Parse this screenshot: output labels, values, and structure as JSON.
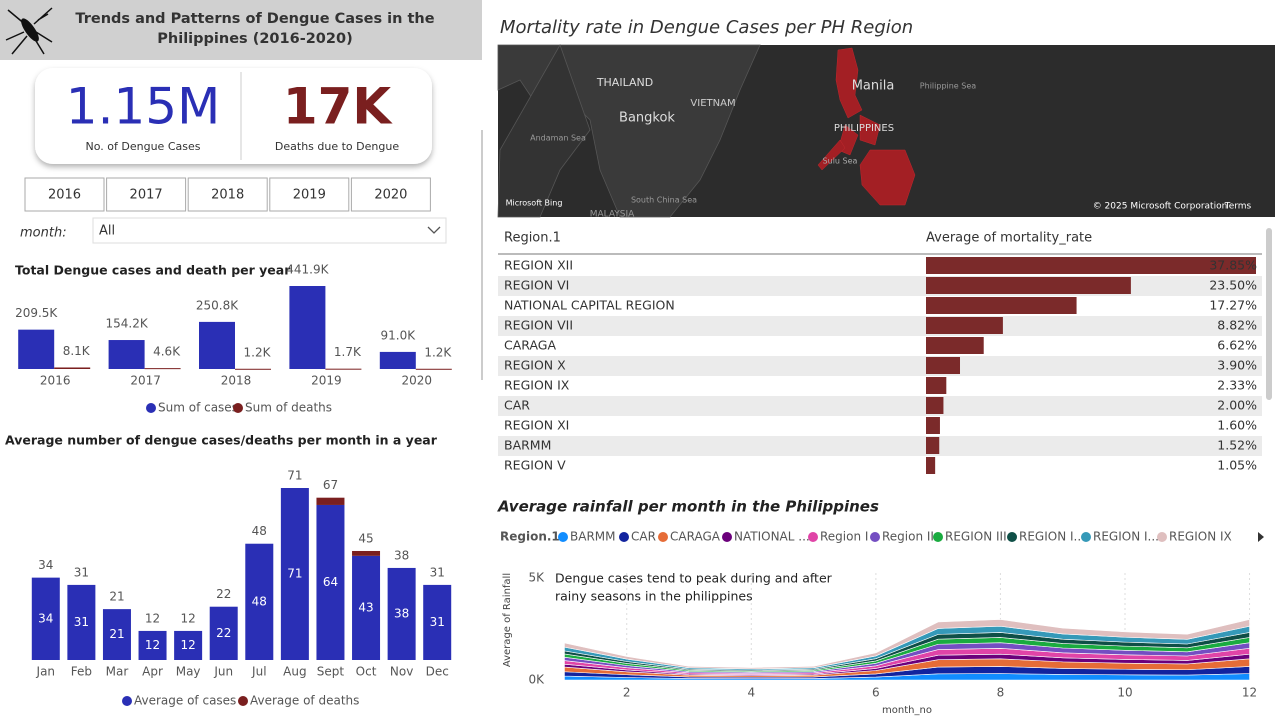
{
  "header": {
    "title": [
      "Trends and Patterns of Dengue Cases in the",
      "Philippines (2016-2020)"
    ]
  },
  "kpis": [
    {
      "value": "1.15M",
      "label": "No. of Dengue Cases"
    },
    {
      "value": "17K",
      "label": "Deaths due to Dengue"
    }
  ],
  "slicer": {
    "years": [
      "2016",
      "2017",
      "2018",
      "2019",
      "2020"
    ],
    "month_label": "month:",
    "month_value": "All"
  },
  "map": {
    "title": "Mortality rate in Dengue Cases per PH Region",
    "labels": [
      "THAILAND",
      "VIETNAM",
      "Bangkok",
      "Andaman Sea",
      "South China Sea",
      "MALAYSIA",
      "Manila",
      "PHILIPPINES",
      "Philippine Sea",
      "Sulu Sea",
      "Microsoft Bing",
      "© 2025 Microsoft Corporation",
      "Terms"
    ]
  },
  "chart_data": [
    {
      "type": "bar",
      "title": "Total Dengue cases and death per year",
      "categories": [
        "2016",
        "2017",
        "2018",
        "2019",
        "2020"
      ],
      "series": [
        {
          "name": "Sum of cases",
          "color": "#2a2fb5",
          "values": [
            209500,
            154200,
            250800,
            441900,
            91000
          ],
          "value_labels": [
            "209.5K",
            "154.2K",
            "250.8K",
            "441.9K",
            "91.0K"
          ]
        },
        {
          "name": "Sum of deaths",
          "color": "#7a1f1f",
          "values": [
            8100,
            4600,
            1200,
            1700,
            1200
          ],
          "value_labels": [
            "8.1K",
            "4.6K",
            "1.2K",
            "1.7K",
            "1.2K"
          ]
        }
      ],
      "stacked": false
    },
    {
      "type": "bar",
      "title": "Average number of dengue cases/deaths per month in a year",
      "categories": [
        "Jan",
        "Feb",
        "Mar",
        "Apr",
        "May",
        "Jun",
        "Jul",
        "Aug",
        "Sept",
        "Oct",
        "Nov",
        "Dec"
      ],
      "series": [
        {
          "name": "Average of cases",
          "color": "#2a2fb5",
          "values": [
            34,
            31,
            21,
            12,
            12,
            22,
            48,
            71,
            64,
            43,
            38,
            31
          ]
        },
        {
          "name": "Average of deaths",
          "color": "#7a1f1f",
          "values": [
            0,
            0,
            0,
            0,
            0,
            0,
            0,
            0,
            3,
            2,
            0,
            0
          ]
        }
      ],
      "totals": [
        34,
        31,
        21,
        12,
        12,
        22,
        48,
        71,
        67,
        45,
        38,
        31
      ],
      "stacked": true
    },
    {
      "type": "hbar",
      "columns": [
        "Region.1",
        "Average of mortality_rate"
      ],
      "color": "#7b2a2a",
      "categories": [
        "REGION XII",
        "REGION VI",
        "NATIONAL CAPITAL REGION",
        "REGION VII",
        "CARAGA",
        "REGION X",
        "REGION IX",
        "CAR",
        "REGION XI",
        "BARMM",
        "REGION V"
      ],
      "values": [
        37.85,
        23.5,
        17.27,
        8.82,
        6.62,
        3.9,
        2.33,
        2.0,
        1.6,
        1.52,
        1.05
      ],
      "value_labels": [
        "37.85%",
        "23.50%",
        "17.27%",
        "8.82%",
        "6.62%",
        "3.90%",
        "2.33%",
        "2.00%",
        "1.60%",
        "1.52%",
        "1.05%"
      ]
    },
    {
      "type": "area",
      "title": "Average rainfall per month in the Philippines",
      "legend_title": "Region.1",
      "x_label": "month_no",
      "y_label": "Average of Rainfall",
      "annotation": [
        "Dengue cases tend to peak during and after",
        "rainy seasons in the philippines"
      ],
      "x": [
        1,
        2,
        3,
        4,
        5,
        6,
        7,
        8,
        9,
        10,
        11,
        12
      ],
      "xlim": [
        0.8,
        12.2
      ],
      "xticks": [
        2,
        4,
        6,
        8,
        10,
        12
      ],
      "ylim": [
        0,
        5000
      ],
      "yticks": [
        {
          "value": 0,
          "label": "0K"
        },
        {
          "value": 5000,
          "label": "5K"
        }
      ],
      "grid": true,
      "series": [
        {
          "name": "BARMM",
          "color": "#118dff",
          "values": [
            194,
            123,
            72,
            65,
            72,
            142,
            304,
            317,
            272,
            252,
            240,
            317
          ]
        },
        {
          "name": "CAR",
          "color": "#12239e",
          "values": [
            211,
            134,
            78,
            71,
            78,
            155,
            331,
            346,
            296,
            275,
            262,
            346
          ]
        },
        {
          "name": "CARAGA",
          "color": "#e66c37",
          "values": [
            229,
            146,
            85,
            77,
            85,
            168,
            359,
            374,
            321,
            298,
            283,
            374
          ]
        },
        {
          "name": "NATIONAL ...",
          "color": "#6b007b",
          "values": [
            141,
            90,
            52,
            47,
            52,
            103,
            221,
            230,
            198,
            183,
            174,
            230
          ]
        },
        {
          "name": "Region I",
          "color": "#e044a7",
          "values": [
            176,
            112,
            65,
            59,
            65,
            129,
            276,
            288,
            247,
            229,
            218,
            288
          ]
        },
        {
          "name": "Region II",
          "color": "#744ec2",
          "values": [
            167,
            106,
            62,
            56,
            62,
            123,
            262,
            274,
            235,
            218,
            207,
            274
          ]
        },
        {
          "name": "REGION III",
          "color": "#1aab40",
          "values": [
            158,
            101,
            59,
            53,
            59,
            116,
            248,
            259,
            222,
            206,
            196,
            259
          ]
        },
        {
          "name": "REGION I...",
          "color": "#0f4f47",
          "values": [
            150,
            95,
            55,
            50,
            55,
            110,
            235,
            245,
            210,
            195,
            185,
            245
          ]
        },
        {
          "name": "REGION I...",
          "color": "#3599b8",
          "values": [
            185,
            118,
            68,
            62,
            68,
            135,
            290,
            302,
            259,
            240,
            229,
            302
          ]
        },
        {
          "name": "REGION IX",
          "color": "#dfbfbf",
          "values": [
            202,
            129,
            75,
            68,
            75,
            148,
            317,
            331,
            284,
            263,
            251,
            331
          ]
        }
      ]
    }
  ]
}
